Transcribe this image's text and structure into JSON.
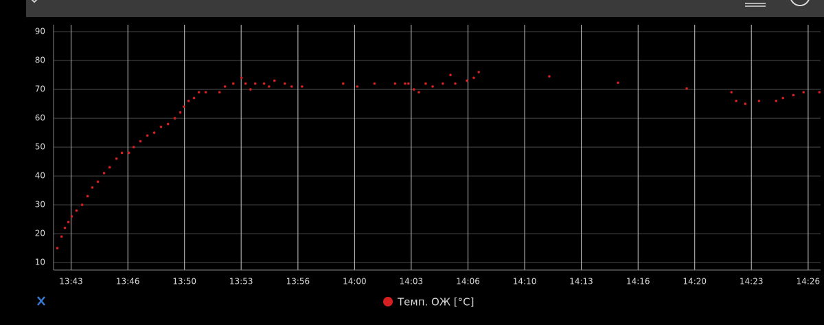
{
  "chart_data": {
    "type": "scatter",
    "x": [
      42.52,
      42.77,
      42.97,
      43.17,
      43.37,
      43.65,
      43.98,
      44.3,
      44.58,
      44.91,
      45.27,
      45.6,
      46.0,
      46.32,
      46.73,
      47.01,
      47.41,
      47.82,
      48.22,
      48.62,
      49.03,
      49.43,
      49.75,
      49.96,
      50.24,
      50.56,
      50.85,
      51.25,
      52.06,
      52.38,
      52.87,
      53.35,
      53.59,
      53.88,
      54.16,
      54.68,
      54.97,
      55.29,
      55.9,
      56.3,
      56.91,
      59.33,
      60.16,
      61.17,
      62.38,
      62.97,
      63.17,
      63.49,
      63.78,
      64.18,
      64.59,
      65.19,
      65.64,
      65.92,
      66.61,
      67.01,
      67.3,
      71.45,
      75.49,
      79.53,
      82.16,
      82.44,
      82.97,
      83.78,
      84.79,
      85.19,
      85.8,
      86.4,
      87.33
    ],
    "series": [
      {
        "name": "Темп. ОЖ [°C]",
        "color": "#d42020",
        "values": [
          15,
          19,
          22,
          24,
          26,
          28,
          30,
          33,
          36,
          38,
          41,
          43,
          46,
          48,
          48,
          50,
          52,
          54,
          55,
          57,
          58,
          60,
          62,
          64,
          66,
          67,
          69,
          69,
          69,
          71,
          72,
          74,
          72,
          70,
          72,
          72,
          71,
          73,
          72,
          71,
          71,
          72,
          71,
          72,
          72,
          72,
          72,
          70,
          69,
          72,
          71,
          72,
          75,
          72,
          73,
          74,
          76,
          74.5,
          72.3,
          70.3,
          69,
          66,
          65,
          66,
          66,
          67,
          68,
          69,
          69
        ]
      }
    ],
    "xlim": [
      42.3,
      87.4
    ],
    "xticks": [
      {
        "value": 43.33,
        "label": "13:43"
      },
      {
        "value": 46.67,
        "label": "13:46"
      },
      {
        "value": 50,
        "label": "13:50"
      },
      {
        "value": 53.33,
        "label": "13:53"
      },
      {
        "value": 56.67,
        "label": "13:56"
      },
      {
        "value": 60,
        "label": "14:00"
      },
      {
        "value": 63.33,
        "label": "14:03"
      },
      {
        "value": 66.67,
        "label": "14:06"
      },
      {
        "value": 70,
        "label": "14:10"
      },
      {
        "value": 73.33,
        "label": "14:13"
      },
      {
        "value": 76.67,
        "label": "14:16"
      },
      {
        "value": 80,
        "label": "14:20"
      },
      {
        "value": 83.33,
        "label": "14:23"
      },
      {
        "value": 86.67,
        "label": "14:26"
      }
    ],
    "ylim": [
      7.4,
      92.4
    ],
    "yticks": [
      10,
      20,
      30,
      40,
      50,
      60,
      70,
      80,
      90
    ],
    "grid": true
  }
}
